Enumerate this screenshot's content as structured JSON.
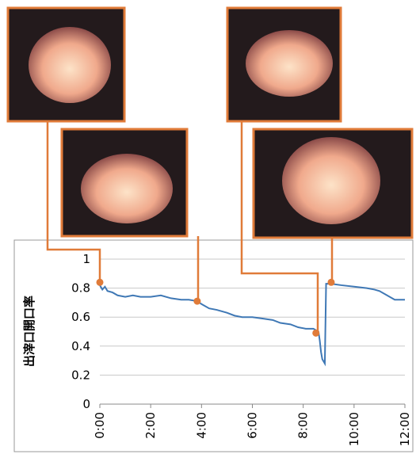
{
  "chart_data": {
    "type": "line",
    "ylabel": "出滓口開口率",
    "x": [
      0,
      0.1,
      0.2,
      0.3,
      0.5,
      0.7,
      1.0,
      1.3,
      1.6,
      2.0,
      2.4,
      2.8,
      3.2,
      3.5,
      3.83,
      4.0,
      4.3,
      4.6,
      5.0,
      5.3,
      5.6,
      6.0,
      6.4,
      6.8,
      7.1,
      7.5,
      7.8,
      8.1,
      8.4,
      8.6,
      8.65,
      8.7,
      8.75,
      8.85,
      8.9,
      9.1,
      9.5,
      10.0,
      10.5,
      10.8,
      11.0,
      11.3,
      11.6,
      12.0
    ],
    "values": [
      0.82,
      0.79,
      0.81,
      0.78,
      0.77,
      0.75,
      0.74,
      0.75,
      0.74,
      0.74,
      0.75,
      0.73,
      0.72,
      0.72,
      0.71,
      0.69,
      0.66,
      0.65,
      0.63,
      0.61,
      0.6,
      0.6,
      0.59,
      0.58,
      0.56,
      0.55,
      0.53,
      0.52,
      0.52,
      0.5,
      0.44,
      0.36,
      0.31,
      0.28,
      0.83,
      0.83,
      0.82,
      0.81,
      0.8,
      0.79,
      0.78,
      0.75,
      0.72,
      0.72
    ],
    "color": "#3f78b5",
    "highlight_points": {
      "x": [
        0,
        3.83,
        8.5,
        9.1
      ],
      "values": [
        0.84,
        0.71,
        0.49,
        0.84
      ],
      "color": "#e07b39"
    },
    "xlim": [
      0,
      12
    ],
    "ylim": [
      0,
      1
    ],
    "xticks": [
      {
        "value": 0,
        "label": "0:00"
      },
      {
        "value": 2,
        "label": "2:00"
      },
      {
        "value": 4,
        "label": "4:00"
      },
      {
        "value": 6,
        "label": "6:00"
      },
      {
        "value": 8,
        "label": "8:00"
      },
      {
        "value": 10,
        "label": "10:00"
      },
      {
        "value": 12,
        "label": "12:00"
      }
    ],
    "yticks": [
      0,
      0.2,
      0.4,
      0.6,
      0.8,
      1
    ],
    "grid": true
  }
}
